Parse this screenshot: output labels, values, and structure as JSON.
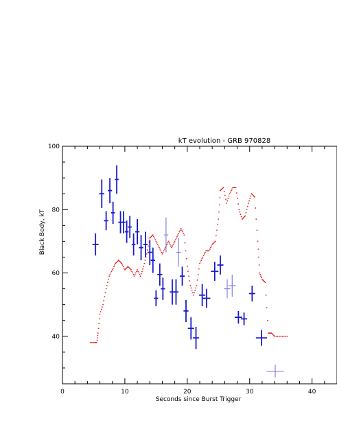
{
  "chart_data": {
    "type": "scatter",
    "title": "kT evolution - GRB 970828",
    "xlabel": "Seconds since Burst Trigger",
    "ylabel": "Black Body, kT",
    "xlim": [
      0,
      44
    ],
    "ylim": [
      25,
      100
    ],
    "x_ticks": [
      0,
      10,
      20,
      30,
      40
    ],
    "y_ticks": [
      40,
      60,
      80,
      100
    ],
    "colors": {
      "points": "#1a1acc",
      "light_points": "#7f7fe6",
      "lightcurve": "#e02020"
    },
    "series": [
      {
        "type": "errorbar",
        "points": [
          {
            "x": 5.3,
            "y": 69,
            "xerr": 0.5,
            "yerr": 3.5
          },
          {
            "x": 6.3,
            "y": 85,
            "xerr": 0.4,
            "yerr": 4.5
          },
          {
            "x": 7.0,
            "y": 76.5,
            "xerr": 0.35,
            "yerr": 3
          },
          {
            "x": 7.6,
            "y": 86,
            "xerr": 0.35,
            "yerr": 4
          },
          {
            "x": 8.1,
            "y": 79,
            "xerr": 0.3,
            "yerr": 3.5
          },
          {
            "x": 8.7,
            "y": 89.5,
            "xerr": 0.3,
            "yerr": 4.5
          },
          {
            "x": 9.3,
            "y": 76,
            "xerr": 0.35,
            "yerr": 3.5
          },
          {
            "x": 9.8,
            "y": 76,
            "xerr": 0.3,
            "yerr": 3.5
          },
          {
            "x": 10.3,
            "y": 73,
            "xerr": 0.3,
            "yerr": 3.5
          },
          {
            "x": 10.8,
            "y": 74.5,
            "xerr": 0.3,
            "yerr": 3.5
          },
          {
            "x": 11.4,
            "y": 69,
            "xerr": 0.3,
            "yerr": 3.5
          },
          {
            "x": 12.0,
            "y": 73,
            "xerr": 0.35,
            "yerr": 4
          },
          {
            "x": 12.6,
            "y": 68,
            "xerr": 0.35,
            "yerr": 4
          },
          {
            "x": 13.3,
            "y": 69,
            "xerr": 0.35,
            "yerr": 4
          },
          {
            "x": 14.0,
            "y": 66.5,
            "xerr": 0.35,
            "yerr": 4
          },
          {
            "x": 14.5,
            "y": 64,
            "xerr": 0.35,
            "yerr": 4
          },
          {
            "x": 15.0,
            "y": 52,
            "xerr": 0.35,
            "yerr": 2.5
          },
          {
            "x": 15.6,
            "y": 59.5,
            "xerr": 0.4,
            "yerr": 3.5
          },
          {
            "x": 16.1,
            "y": 55,
            "xerr": 0.35,
            "yerr": 3.5
          },
          {
            "x": 17.6,
            "y": 54,
            "xerr": 0.4,
            "yerr": 4
          },
          {
            "x": 18.2,
            "y": 54,
            "xerr": 0.4,
            "yerr": 4
          },
          {
            "x": 19.2,
            "y": 59,
            "xerr": 0.4,
            "yerr": 3
          },
          {
            "x": 19.8,
            "y": 48,
            "xerr": 0.4,
            "yerr": 3.5
          },
          {
            "x": 20.6,
            "y": 42.5,
            "xerr": 0.5,
            "yerr": 3.5
          },
          {
            "x": 21.4,
            "y": 39.5,
            "xerr": 0.5,
            "yerr": 3.5
          },
          {
            "x": 22.4,
            "y": 53,
            "xerr": 0.5,
            "yerr": 3.5
          },
          {
            "x": 23.1,
            "y": 52,
            "xerr": 0.6,
            "yerr": 3
          },
          {
            "x": 24.4,
            "y": 60.5,
            "xerr": 0.6,
            "yerr": 3
          },
          {
            "x": 25.3,
            "y": 62.5,
            "xerr": 0.5,
            "yerr": 3
          },
          {
            "x": 28.2,
            "y": 46,
            "xerr": 0.6,
            "yerr": 2
          },
          {
            "x": 29.1,
            "y": 45.5,
            "xerr": 0.5,
            "yerr": 2
          },
          {
            "x": 30.4,
            "y": 53.5,
            "xerr": 0.5,
            "yerr": 2.5
          },
          {
            "x": 31.9,
            "y": 39.5,
            "xerr": 0.9,
            "yerr": 2.5
          }
        ]
      },
      {
        "type": "errorbar_light",
        "points": [
          {
            "x": 16.6,
            "y": 72,
            "xerr": 0.35,
            "yerr": 5.5
          },
          {
            "x": 18.6,
            "y": 66.5,
            "xerr": 0.35,
            "yerr": 4.5
          },
          {
            "x": 26.4,
            "y": 55,
            "xerr": 0.5,
            "yerr": 3
          },
          {
            "x": 27.2,
            "y": 56,
            "xerr": 0.6,
            "yerr": 3.5
          },
          {
            "x": 34.1,
            "y": 29,
            "xerr": 1.4,
            "yerr": 2
          }
        ]
      },
      {
        "type": "dotted_line",
        "points": [
          [
            4.5,
            38
          ],
          [
            5.2,
            38
          ],
          [
            5.5,
            38
          ],
          [
            5.7,
            41
          ],
          [
            6.0,
            47
          ],
          [
            6.5,
            50
          ],
          [
            7.0,
            55
          ],
          [
            7.5,
            59
          ],
          [
            8.0,
            61
          ],
          [
            8.5,
            63
          ],
          [
            9.0,
            64
          ],
          [
            9.5,
            63
          ],
          [
            10.0,
            61
          ],
          [
            10.5,
            62
          ],
          [
            11.0,
            61
          ],
          [
            11.5,
            59
          ],
          [
            12.0,
            61
          ],
          [
            12.5,
            59
          ],
          [
            13.0,
            62
          ],
          [
            13.5,
            66
          ],
          [
            14.0,
            71
          ],
          [
            14.5,
            72
          ],
          [
            15.0,
            70
          ],
          [
            15.5,
            68
          ],
          [
            16.0,
            66
          ],
          [
            16.5,
            68
          ],
          [
            17.0,
            70
          ],
          [
            17.5,
            68
          ],
          [
            18.0,
            70
          ],
          [
            18.5,
            72
          ],
          [
            19.0,
            74
          ],
          [
            19.5,
            72
          ],
          [
            20.0,
            62
          ],
          [
            20.5,
            56
          ],
          [
            21.0,
            53
          ],
          [
            21.5,
            56
          ],
          [
            22.0,
            63
          ],
          [
            22.5,
            65
          ],
          [
            23.0,
            67
          ],
          [
            23.5,
            67
          ],
          [
            24.0,
            69
          ],
          [
            24.5,
            70
          ],
          [
            25.0,
            77
          ],
          [
            25.3,
            86
          ],
          [
            25.8,
            87
          ],
          [
            26.3,
            82
          ],
          [
            26.8,
            85
          ],
          [
            27.3,
            87
          ],
          [
            27.8,
            87
          ],
          [
            28.3,
            80
          ],
          [
            28.8,
            77
          ],
          [
            29.3,
            78
          ],
          [
            29.8,
            82
          ],
          [
            30.3,
            85
          ],
          [
            30.8,
            84
          ],
          [
            31.3,
            70
          ],
          [
            31.6,
            60
          ],
          [
            32.0,
            58
          ],
          [
            32.5,
            57
          ],
          [
            33.0,
            41
          ],
          [
            33.5,
            41
          ],
          [
            34.0,
            40
          ],
          [
            35.0,
            40
          ],
          [
            36.0,
            40
          ]
        ]
      }
    ]
  }
}
